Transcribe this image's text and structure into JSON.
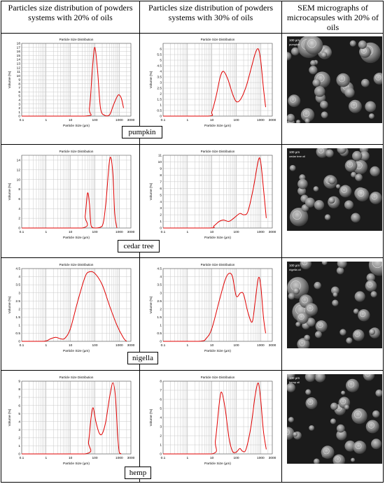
{
  "header": {
    "col1": "Particles size distribution of powders systems with 20% of oils",
    "col2": "Particles size distribution of powders systems with 30% of oils",
    "col3": "SEM micrographs of microcapsules with 20% of oils"
  },
  "rows": [
    {
      "label": "pumpkin"
    },
    {
      "label": "cedar tree"
    },
    {
      "label": "nigella"
    },
    {
      "label": "hemp"
    }
  ],
  "chart_common": {
    "title": "Particle Size Distribution",
    "xlabel": "Particle Size (µm)",
    "ylabel": "Volume (%)",
    "xticks": [
      "0.1",
      "1",
      "10",
      "100",
      "1000",
      "3000"
    ]
  },
  "sem": [
    {
      "scale_text": "100 µm",
      "sub_text": "pumpkin"
    },
    {
      "scale_text": "100 µm",
      "sub_text": "cedar tree oil"
    },
    {
      "scale_text": "100 µm",
      "sub_text": "nigella oil"
    },
    {
      "scale_text": "100 µm",
      "sub_text": "hemp oil"
    }
  ],
  "chart_data": [
    {
      "type": "line",
      "title": "Particle Size Distribution",
      "xlabel": "Particle Size (µm)",
      "ylabel": "Volume (%)",
      "xscale": "log",
      "xlim": [
        0.1,
        3000
      ],
      "ylim": [
        0,
        18
      ],
      "yticks": [
        0,
        1,
        2,
        3,
        4,
        5,
        6,
        7,
        8,
        9,
        10,
        11,
        12,
        13,
        14,
        15,
        16,
        17,
        18
      ],
      "series": [
        {
          "values": [
            [
              0.1,
              0
            ],
            [
              40,
              0
            ],
            [
              60,
              2
            ],
            [
              80,
              12
            ],
            [
              100,
              17
            ],
            [
              130,
              11
            ],
            [
              170,
              2
            ],
            [
              250,
              0.2
            ],
            [
              400,
              0.3
            ],
            [
              600,
              3
            ],
            [
              900,
              5.2
            ],
            [
              1200,
              4.5
            ],
            [
              1500,
              2
            ]
          ]
        }
      ]
    },
    {
      "type": "line",
      "title": "Particle Size Distribution",
      "xlabel": "Particle Size (µm)",
      "ylabel": "Volume (%)",
      "xscale": "log",
      "xlim": [
        0.1,
        3000
      ],
      "ylim": [
        0,
        6.5
      ],
      "yticks": [
        0,
        0.5,
        1,
        1.5,
        2,
        2.5,
        3,
        3.5,
        4,
        4.5,
        5,
        5.5,
        6
      ],
      "series": [
        {
          "values": [
            [
              0.1,
              0
            ],
            [
              7,
              0
            ],
            [
              10,
              0.4
            ],
            [
              15,
              1.8
            ],
            [
              22,
              3.5
            ],
            [
              30,
              4
            ],
            [
              45,
              3.3
            ],
            [
              70,
              2
            ],
            [
              100,
              1.3
            ],
            [
              150,
              1.5
            ],
            [
              250,
              2.6
            ],
            [
              400,
              4.2
            ],
            [
              600,
              5.6
            ],
            [
              800,
              6
            ],
            [
              1000,
              5
            ],
            [
              1300,
              2.5
            ],
            [
              1600,
              0.8
            ]
          ]
        }
      ]
    },
    {
      "type": "line",
      "title": "Particle Size Distribution",
      "xlabel": "Particle Size (µm)",
      "ylabel": "Volume (%)",
      "xscale": "log",
      "xlim": [
        0.1,
        3000
      ],
      "ylim": [
        0,
        15
      ],
      "yticks": [
        0,
        2,
        4,
        6,
        8,
        10,
        12,
        14
      ],
      "series": [
        {
          "values": [
            [
              0.1,
              0
            ],
            [
              30,
              0
            ],
            [
              40,
              2.5
            ],
            [
              50,
              7.2
            ],
            [
              60,
              5
            ],
            [
              70,
              0.5
            ],
            [
              100,
              0
            ],
            [
              200,
              0.4
            ],
            [
              280,
              5
            ],
            [
              380,
              13
            ],
            [
              450,
              14.5
            ],
            [
              550,
              11
            ],
            [
              650,
              3
            ],
            [
              800,
              0
            ]
          ]
        }
      ]
    },
    {
      "type": "line",
      "title": "Particle Size Distribution",
      "xlabel": "Particle Size (µm)",
      "ylabel": "Volume (%)",
      "xscale": "log",
      "xlim": [
        0.1,
        3000
      ],
      "ylim": [
        0,
        11
      ],
      "yticks": [
        0,
        1,
        2,
        3,
        4,
        5,
        6,
        7,
        8,
        9,
        10,
        11
      ],
      "series": [
        {
          "values": [
            [
              0.1,
              0
            ],
            [
              8,
              0
            ],
            [
              12,
              0.3
            ],
            [
              20,
              1
            ],
            [
              30,
              1.2
            ],
            [
              50,
              1
            ],
            [
              80,
              1.5
            ],
            [
              140,
              2.2
            ],
            [
              200,
              2
            ],
            [
              300,
              2.5
            ],
            [
              500,
              6
            ],
            [
              800,
              10.2
            ],
            [
              1000,
              10
            ],
            [
              1300,
              6
            ],
            [
              1700,
              1.5
            ]
          ]
        }
      ]
    },
    {
      "type": "line",
      "title": "Particle Size Distribution",
      "xlabel": "Particle Size (µm)",
      "ylabel": "Volume (%)",
      "xscale": "log",
      "xlim": [
        0.1,
        3000
      ],
      "ylim": [
        0,
        4.5
      ],
      "yticks": [
        0,
        0.5,
        1,
        1.5,
        2,
        2.5,
        3,
        3.5,
        4,
        4.5
      ],
      "series": [
        {
          "values": [
            [
              0.1,
              0
            ],
            [
              0.8,
              0
            ],
            [
              1.5,
              0.15
            ],
            [
              2.5,
              0.25
            ],
            [
              4,
              0.15
            ],
            [
              6,
              0.2
            ],
            [
              10,
              0.8
            ],
            [
              20,
              2.5
            ],
            [
              40,
              4
            ],
            [
              60,
              4.3
            ],
            [
              100,
              4.2
            ],
            [
              200,
              3.5
            ],
            [
              400,
              2.2
            ],
            [
              800,
              1
            ],
            [
              1500,
              0.2
            ],
            [
              2000,
              0
            ]
          ]
        }
      ]
    },
    {
      "type": "line",
      "title": "Particle Size Distribution",
      "xlabel": "Particle Size (µm)",
      "ylabel": "Volume (%)",
      "xscale": "log",
      "xlim": [
        0.1,
        3000
      ],
      "ylim": [
        0,
        4.5
      ],
      "yticks": [
        0,
        0.5,
        1,
        1.5,
        2,
        2.5,
        3,
        3.5,
        4,
        4.5
      ],
      "series": [
        {
          "values": [
            [
              0.1,
              0
            ],
            [
              3,
              0
            ],
            [
              6,
              0.2
            ],
            [
              10,
              0.8
            ],
            [
              20,
              2.5
            ],
            [
              35,
              3.8
            ],
            [
              50,
              4.2
            ],
            [
              70,
              4
            ],
            [
              100,
              2.8
            ],
            [
              150,
              3
            ],
            [
              200,
              2.9
            ],
            [
              300,
              1.8
            ],
            [
              450,
              1.2
            ],
            [
              600,
              2.5
            ],
            [
              800,
              3.9
            ],
            [
              1000,
              3.5
            ],
            [
              1300,
              1.5
            ],
            [
              1600,
              0.5
            ]
          ]
        }
      ]
    },
    {
      "type": "line",
      "title": "Particle Size Distribution",
      "xlabel": "Particle Size (µm)",
      "ylabel": "Volume (%)",
      "xscale": "log",
      "xlim": [
        0.1,
        3000
      ],
      "ylim": [
        0,
        9
      ],
      "yticks": [
        0,
        1,
        2,
        3,
        4,
        5,
        6,
        7,
        8,
        9
      ],
      "series": [
        {
          "values": [
            [
              0.1,
              0
            ],
            [
              40,
              0
            ],
            [
              55,
              1.5
            ],
            [
              70,
              4.5
            ],
            [
              85,
              5.7
            ],
            [
              110,
              4
            ],
            [
              150,
              2.6
            ],
            [
              200,
              2.5
            ],
            [
              280,
              4
            ],
            [
              400,
              7
            ],
            [
              550,
              8.8
            ],
            [
              700,
              7
            ],
            [
              850,
              2.5
            ],
            [
              1000,
              0.2
            ],
            [
              1200,
              0
            ]
          ]
        }
      ]
    },
    {
      "type": "line",
      "title": "Particle Size Distribution",
      "xlabel": "Particle Size (µm)",
      "ylabel": "Volume (%)",
      "xscale": "log",
      "xlim": [
        0.1,
        3000
      ],
      "ylim": [
        0,
        8
      ],
      "yticks": [
        0,
        1,
        2,
        3,
        4,
        5,
        6,
        7,
        8
      ],
      "series": [
        {
          "values": [
            [
              0.1,
              0
            ],
            [
              10,
              0
            ],
            [
              14,
              1.5
            ],
            [
              20,
              5.5
            ],
            [
              25,
              6.8
            ],
            [
              35,
              5
            ],
            [
              50,
              1.8
            ],
            [
              70,
              0.3
            ],
            [
              100,
              0.2
            ],
            [
              140,
              0.6
            ],
            [
              180,
              0.3
            ],
            [
              250,
              0.5
            ],
            [
              400,
              3
            ],
            [
              600,
              6.5
            ],
            [
              800,
              7.8
            ],
            [
              1000,
              6
            ],
            [
              1300,
              2.5
            ],
            [
              1700,
              0.5
            ]
          ]
        }
      ]
    }
  ]
}
